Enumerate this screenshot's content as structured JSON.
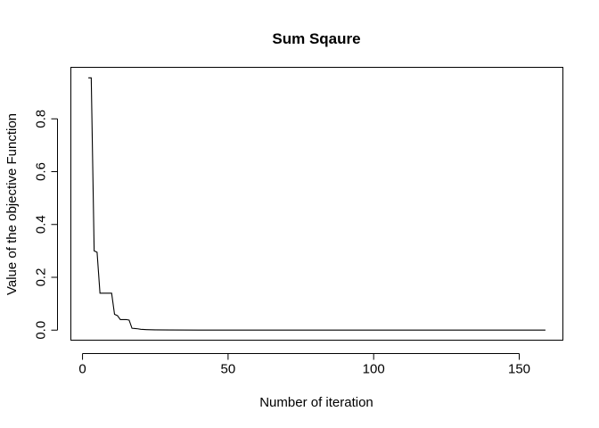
{
  "chart_data": {
    "type": "line",
    "title": "Sum Sqaure",
    "xlabel": "Number of iteration",
    "ylabel": "Value of the objective Function",
    "xlim": [
      -4,
      165
    ],
    "ylim": [
      -0.038,
      0.995
    ],
    "x_ticks": [
      0,
      50,
      100,
      150
    ],
    "x_tick_labels": [
      "0",
      "50",
      "100",
      "150"
    ],
    "y_ticks": [
      0.0,
      0.2,
      0.4,
      0.6,
      0.8
    ],
    "y_tick_labels": [
      "0.0",
      "0.2",
      "0.4",
      "0.6",
      "0.8"
    ],
    "grid": false,
    "legend": "none",
    "line_color": "#000000",
    "series": [
      {
        "x": [
          2,
          3,
          4,
          5,
          6,
          7,
          8,
          9,
          10,
          11,
          12,
          13,
          14,
          15,
          16,
          17,
          18,
          19,
          20,
          22,
          25,
          30,
          40,
          60,
          100,
          159
        ],
        "y": [
          0.955,
          0.955,
          0.3,
          0.295,
          0.14,
          0.14,
          0.14,
          0.14,
          0.14,
          0.06,
          0.055,
          0.04,
          0.04,
          0.04,
          0.038,
          0.007,
          0.006,
          0.005,
          0.003,
          0.002,
          0.001,
          0.0005,
          0.0003,
          0.0002,
          0.0001,
          0.0001
        ]
      }
    ]
  }
}
